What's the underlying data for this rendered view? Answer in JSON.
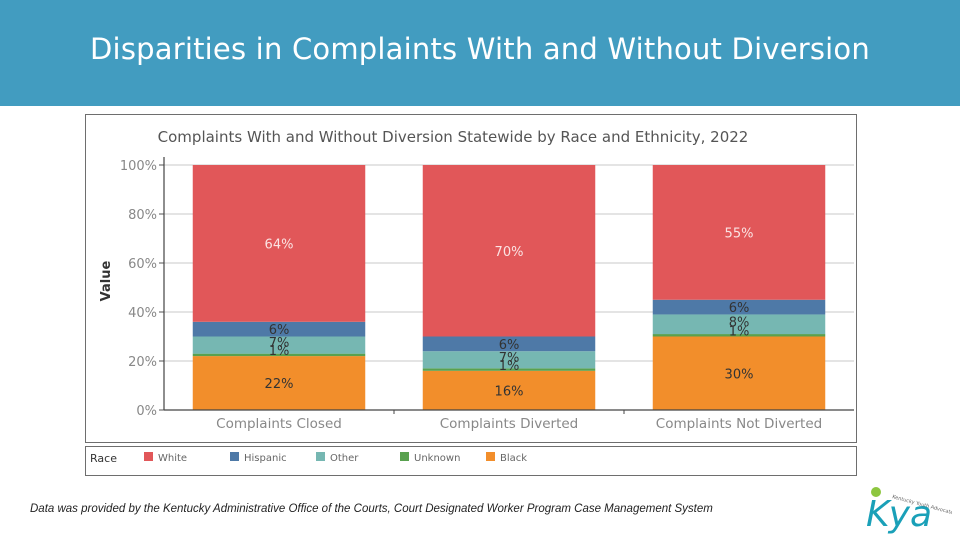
{
  "slide": {
    "title": "Disparities in Complaints With and Without Diversion",
    "footnote": "Data was provided by the Kentucky Administrative Office of the Courts, Court Designated Worker Program Case Management System",
    "banner_color": "#429cc0",
    "logo": {
      "text": "Kya",
      "tagline": "Kentucky Youth Advocates"
    }
  },
  "chart_data": {
    "type": "bar",
    "stacked": true,
    "title": "Complaints With and Without Diversion Statewide by Race and Ethnicity, 2022",
    "xlabel": "",
    "ylabel": "Value",
    "ylim": [
      0,
      100
    ],
    "yticks": [
      "0%",
      "20%",
      "40%",
      "60%",
      "80%",
      "100%"
    ],
    "ytick_values": [
      0,
      20,
      40,
      60,
      80,
      100
    ],
    "grid": true,
    "categories": [
      "Complaints Closed",
      "Complaints Diverted",
      "Complaints Not Diverted"
    ],
    "series": [
      {
        "name": "Black",
        "color": "#f28e2b",
        "values": [
          22,
          16,
          30
        ],
        "labels": [
          "22%",
          "16%",
          "30%"
        ]
      },
      {
        "name": "Unknown",
        "color": "#59a14f",
        "values": [
          1,
          1,
          1
        ],
        "labels": [
          "1%",
          "1%",
          "1%"
        ]
      },
      {
        "name": "Other",
        "color": "#76b7b2",
        "values": [
          7,
          7,
          8
        ],
        "labels": [
          "7%",
          "7%",
          "8%"
        ]
      },
      {
        "name": "Hispanic",
        "color": "#4e79a7",
        "values": [
          6,
          6,
          6
        ],
        "labels": [
          "6%",
          "6%",
          "6%"
        ]
      },
      {
        "name": "White",
        "color": "#e15759",
        "values": [
          64,
          70,
          55
        ],
        "labels": [
          "64%",
          "70%",
          "55%"
        ]
      }
    ],
    "legend": {
      "title": "Race",
      "placement": "bottom",
      "entries": [
        "White",
        "Hispanic",
        "Other",
        "Unknown",
        "Black"
      ]
    }
  }
}
